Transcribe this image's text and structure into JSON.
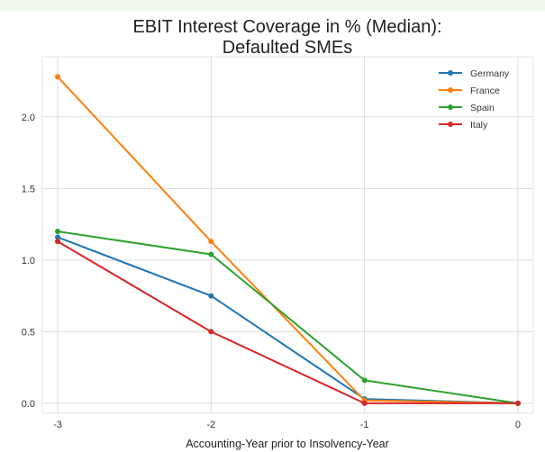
{
  "colors": {
    "Germany": "#1f77b4",
    "France": "#ff7f0e",
    "Spain": "#2ca02c",
    "Italy": "#d62728"
  },
  "chart_data": {
    "type": "line",
    "title": [
      "EBIT Interest Coverage in % (Median):",
      "Defaulted SMEs"
    ],
    "xlabel": "Accounting-Year prior to Insolvency-Year",
    "ylabel": "",
    "x": [
      -3,
      -2,
      -1,
      0
    ],
    "xlim": [
      -3.1,
      0.1
    ],
    "ylim": [
      -0.07,
      2.42
    ],
    "xticks": [
      "-3",
      "-2",
      "-1",
      "0"
    ],
    "yticks": [
      "0.0",
      "0.5",
      "1.0",
      "1.5",
      "2.0"
    ],
    "grid": true,
    "legend": "top-right",
    "series": [
      {
        "name": "Germany",
        "values": [
          1.16,
          0.75,
          0.03,
          0.0
        ]
      },
      {
        "name": "France",
        "values": [
          2.28,
          1.13,
          0.02,
          0.0
        ]
      },
      {
        "name": "Spain",
        "values": [
          1.2,
          1.04,
          0.16,
          0.0
        ]
      },
      {
        "name": "Italy",
        "values": [
          1.13,
          0.5,
          0.0,
          0.0
        ]
      }
    ]
  }
}
